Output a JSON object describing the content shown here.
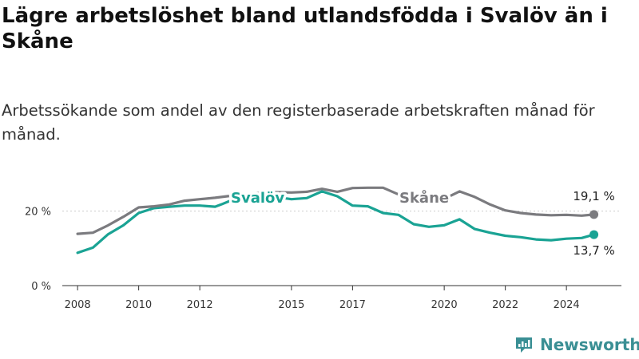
{
  "title": "Lägre arbetslöshet bland utlandsfödda i Svalöv än i Skåne",
  "subtitle": "Arbetssökande som andel av den registerbaserade arbetskraften månad för månad.",
  "brand": "Newsworthy",
  "colors": {
    "svalov": "#1aa394",
    "skane": "#7b7b7f",
    "axis": "#333333",
    "grid": "#cccccc",
    "brand": "#3a8f94"
  },
  "chart_data": {
    "type": "line",
    "x_ticks": [
      2008,
      2010,
      2012,
      2015,
      2017,
      2020,
      2022,
      2024
    ],
    "y_ticks": [
      0,
      20
    ],
    "y_tick_labels": [
      "0 %",
      "20 %"
    ],
    "xlim": [
      2007.5,
      2025.8
    ],
    "ylim": [
      0,
      30
    ],
    "series": [
      {
        "name": "Svalöv",
        "color": "#1aa394",
        "x": [
          2008.0,
          2008.5,
          2009.0,
          2009.5,
          2010.0,
          2010.5,
          2011.0,
          2011.5,
          2012.0,
          2012.5,
          2012.7,
          2013.0,
          2013.5,
          2014.0,
          2014.5,
          2015.0,
          2015.5,
          2016.0,
          2016.5,
          2017.0,
          2017.5,
          2018.0,
          2018.5,
          2019.0,
          2019.5,
          2020.0,
          2020.5,
          2021.0,
          2021.5,
          2022.0,
          2022.5,
          2023.0,
          2023.5,
          2024.0,
          2024.5,
          2024.9
        ],
        "values": [
          8.8,
          10.2,
          13.8,
          16.2,
          19.5,
          20.8,
          21.2,
          21.5,
          21.5,
          21.2,
          21.8,
          22.8,
          23.5,
          23.8,
          23.8,
          23.2,
          23.5,
          25.3,
          24.0,
          21.5,
          21.3,
          19.5,
          19.0,
          16.5,
          15.8,
          16.2,
          17.8,
          15.2,
          14.2,
          13.4,
          13.0,
          12.4,
          12.2,
          12.6,
          12.8,
          13.7
        ],
        "end_label": "13,7 %"
      },
      {
        "name": "Skåne",
        "color": "#7b7b7f",
        "x": [
          2008.0,
          2008.5,
          2009.0,
          2009.5,
          2010.0,
          2010.5,
          2011.0,
          2011.5,
          2012.0,
          2012.5,
          2013.0,
          2013.5,
          2014.0,
          2014.5,
          2015.0,
          2015.5,
          2016.0,
          2016.5,
          2017.0,
          2017.5,
          2018.0,
          2018.5,
          2019.0,
          2019.5,
          2020.0,
          2020.5,
          2021.0,
          2021.5,
          2022.0,
          2022.5,
          2023.0,
          2023.5,
          2024.0,
          2024.5,
          2024.9
        ],
        "values": [
          13.9,
          14.2,
          16.2,
          18.5,
          21.0,
          21.3,
          21.8,
          22.8,
          23.2,
          23.6,
          24.1,
          24.6,
          24.9,
          25.1,
          25.0,
          25.2,
          26.0,
          25.2,
          26.2,
          26.3,
          26.3,
          24.5,
          23.3,
          23.0,
          23.3,
          25.3,
          23.8,
          21.8,
          20.2,
          19.5,
          19.1,
          18.9,
          19.0,
          18.8,
          19.1
        ],
        "end_label": "19,1 %"
      }
    ]
  }
}
